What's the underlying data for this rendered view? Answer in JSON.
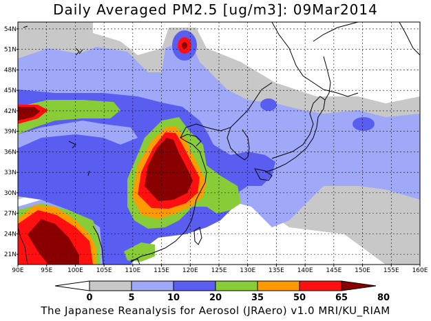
{
  "title": "Daily Averaged PM2.5 [ug/m3]: 09Mar2014",
  "footer": "The Japanese Reanalysis for Aerosol (JRAero) v1.0 MRI/KU_RIAM",
  "map": {
    "lon_range": [
      90,
      160
    ],
    "lat_range": [
      19.5,
      55
    ],
    "lon_ticks": [
      "90E",
      "95E",
      "100E",
      "105E",
      "110E",
      "115E",
      "120E",
      "125E",
      "130E",
      "135E",
      "140E",
      "145E",
      "150E",
      "155E",
      "160E"
    ],
    "lat_ticks": [
      "21N",
      "24N",
      "27N",
      "30N",
      "33N",
      "36N",
      "39N",
      "42N",
      "45N",
      "48N",
      "51N",
      "54N"
    ],
    "grid": "dashed"
  },
  "colorbar": {
    "labels": [
      "0",
      "5",
      "10",
      "20",
      "35",
      "50",
      "65",
      "80"
    ],
    "colors": [
      "#ffffff",
      "#c8c8c8",
      "#a0a8f8",
      "#5a5ef0",
      "#88cc38",
      "#ff9a00",
      "#ff1010",
      "#8a0000"
    ]
  },
  "palette": {
    "white": "#ffffff",
    "grey": "#c8c8c8",
    "lightblue": "#a0a8f8",
    "blue": "#5a5ef0",
    "green": "#88cc38",
    "orange": "#ff9a00",
    "red": "#ff1010",
    "darkred": "#8a0000"
  }
}
